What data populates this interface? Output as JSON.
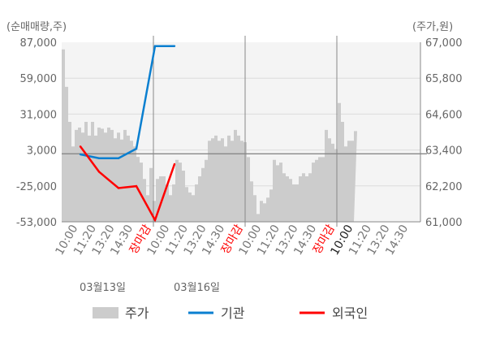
{
  "chart_data": {
    "type": "line",
    "left_axis": {
      "label": "(순매매량,주)",
      "ticks": [
        87000,
        59000,
        31000,
        3000,
        -25000,
        -53000
      ],
      "tick_labels": [
        "87,000",
        "59,000",
        "31,000",
        "3,000",
        "-25,000",
        "-53,000"
      ],
      "range": [
        -53000,
        87000
      ]
    },
    "right_axis": {
      "label": "(주가,원)",
      "ticks": [
        67000,
        65800,
        64600,
        63400,
        62200,
        61000
      ],
      "tick_labels": [
        "67,000",
        "65,800",
        "64,600",
        "63,400",
        "62,200",
        "61,000"
      ],
      "range": [
        61000,
        67000
      ]
    },
    "x_tick_labels": [
      "10:00",
      "11:20",
      "13:20",
      "14:30",
      "장마감",
      "10:00",
      "11:20",
      "13:20",
      "14:30",
      "장마감",
      "10:00",
      "11:20",
      "13:20",
      "14:30",
      "장마감",
      "10:00",
      "11:20",
      "13:20",
      "14:30"
    ],
    "date_labels": [
      "03월13일",
      "03월16일"
    ],
    "grid": true,
    "legend_position": "bottom",
    "series": [
      {
        "name": "주가",
        "type": "area",
        "axis": "right",
        "color": "#cccccc",
        "values": [
          66760,
          65510,
          64340,
          63520,
          64070,
          64150,
          63980,
          64340,
          63880,
          64340,
          63880,
          64150,
          64110,
          63980,
          64150,
          64070,
          63790,
          63980,
          63750,
          64070,
          63880,
          63710,
          63520,
          63170,
          62980,
          62430,
          61890,
          62800,
          61700,
          62430,
          62520,
          62520,
          62250,
          61890,
          62250,
          63070,
          62980,
          62710,
          62160,
          61980,
          61890,
          62250,
          62520,
          62800,
          63070,
          63710,
          63790,
          63880,
          63710,
          63790,
          63520,
          63880,
          63710,
          64070,
          63880,
          63710,
          63660,
          63160,
          62350,
          61890,
          61260,
          61700,
          61620,
          61810,
          62080,
          63070,
          62890,
          62980,
          62620,
          62520,
          62430,
          62250,
          62250,
          62520,
          62620,
          62520,
          62620,
          62980,
          63070,
          63160,
          63160,
          64070,
          63790,
          63610,
          63430,
          64970,
          64340,
          63520,
          63710,
          63710,
          64030
        ]
      },
      {
        "name": "기관",
        "type": "line",
        "axis": "left",
        "color": "#0a7fd0",
        "values": [
          -400,
          -3400,
          -3400,
          4000,
          84000,
          84000
        ]
      },
      {
        "name": "외국인",
        "type": "line",
        "axis": "left",
        "color": "#ff0000",
        "values": [
          5700,
          -14000,
          -26700,
          -25200,
          -51700,
          -8000
        ]
      }
    ]
  }
}
